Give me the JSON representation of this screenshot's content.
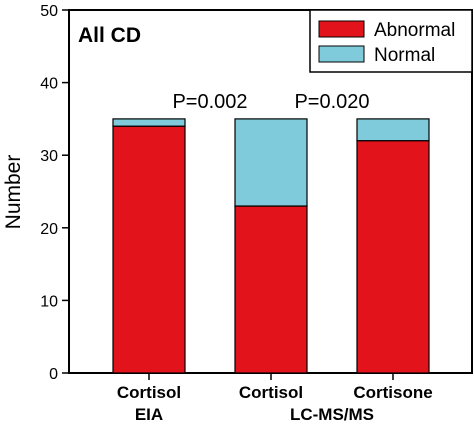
{
  "chart_data": {
    "type": "bar",
    "stacked": true,
    "title": "All CD",
    "ylabel": "Number",
    "ylim": [
      0,
      50
    ],
    "yticks": [
      0,
      10,
      20,
      30,
      40,
      50
    ],
    "categories": [
      "Cortisol",
      "Cortisol",
      "Cortisone"
    ],
    "category_groups": [
      {
        "label": "EIA",
        "categories": [
          0
        ]
      },
      {
        "label": "LC-MS/MS",
        "categories": [
          1,
          2
        ]
      }
    ],
    "series": [
      {
        "name": "Abnormal",
        "color": "#e3131b",
        "values": [
          34,
          23,
          32
        ]
      },
      {
        "name": "Normal",
        "color": "#7fcbdb",
        "values": [
          1,
          12,
          3
        ]
      }
    ],
    "annotations": [
      {
        "text": "P=0.002",
        "between": [
          0,
          1
        ]
      },
      {
        "text": "P=0.020",
        "between": [
          1,
          2
        ]
      }
    ],
    "legend": "top-right",
    "grid": false
  }
}
